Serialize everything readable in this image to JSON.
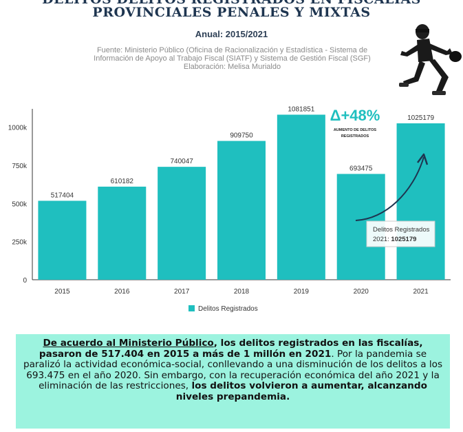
{
  "header": {
    "title_line1": "DELITOS DELITOS REGISTRADOS EN FISCALÍAS",
    "title_line2": "PROVINCIALES PENALES Y MIXTAS",
    "subtitle": "Anual: 2015/2021",
    "source_line1": "Fuente: Ministerio Público (Oficina de Racionalización y Estadística - Sistema de",
    "source_line2": "Información de Apoyo al Trabajo Fiscal (SIATF) y Sistema de Gestión Fiscal (SGF)",
    "source_line3": "Elaboración: Melisa Murialdo"
  },
  "chart_data": {
    "type": "bar",
    "categories": [
      "2015",
      "2016",
      "2017",
      "2018",
      "2019",
      "2020",
      "2021"
    ],
    "series": [
      {
        "name": "Delitos Registrados",
        "values": [
          517404,
          610182,
          740047,
          909750,
          1081851,
          693475,
          1025179
        ]
      }
    ],
    "data_labels": [
      "517404",
      "610182",
      "740047",
      "909750",
      "1081851",
      "693475",
      "1025179"
    ],
    "y_ticks": [
      0,
      250000,
      500000,
      750000,
      1000000
    ],
    "y_tick_labels": [
      "0",
      "250k",
      "500k",
      "750k",
      "1000k"
    ],
    "ylim": [
      0,
      1120000
    ],
    "color": "#1fbfbf",
    "legend": {
      "position": "bottom",
      "label": "Delitos Registrados"
    },
    "grid": false,
    "annotation": {
      "big": "Δ+48%",
      "small_line1": "AUMENTO DE DELITOS",
      "small_line2": "REGISTRADOS"
    },
    "tooltip": {
      "line1": "Delitos Registrados",
      "line2_prefix": "2021: ",
      "line2_value": "1025179"
    }
  },
  "summary": {
    "p1": "De acuerdo al Ministerio Público",
    "p2": ", los delitos registrados en las fiscalías, pasaron de 517.404 en 2015 a más de 1 millón en 2021",
    "p3": ". Por la pandemia se paralizó la actividad económica-social, conllevando a una disminución de los delitos a los 693.475 en el año 2020. Sin embargo, con la recuperación económica del año 2021 y la eliminación de las restricciones, ",
    "p4": "los delitos volvieron a aumentar, alcanzando niveles prepandemia."
  }
}
